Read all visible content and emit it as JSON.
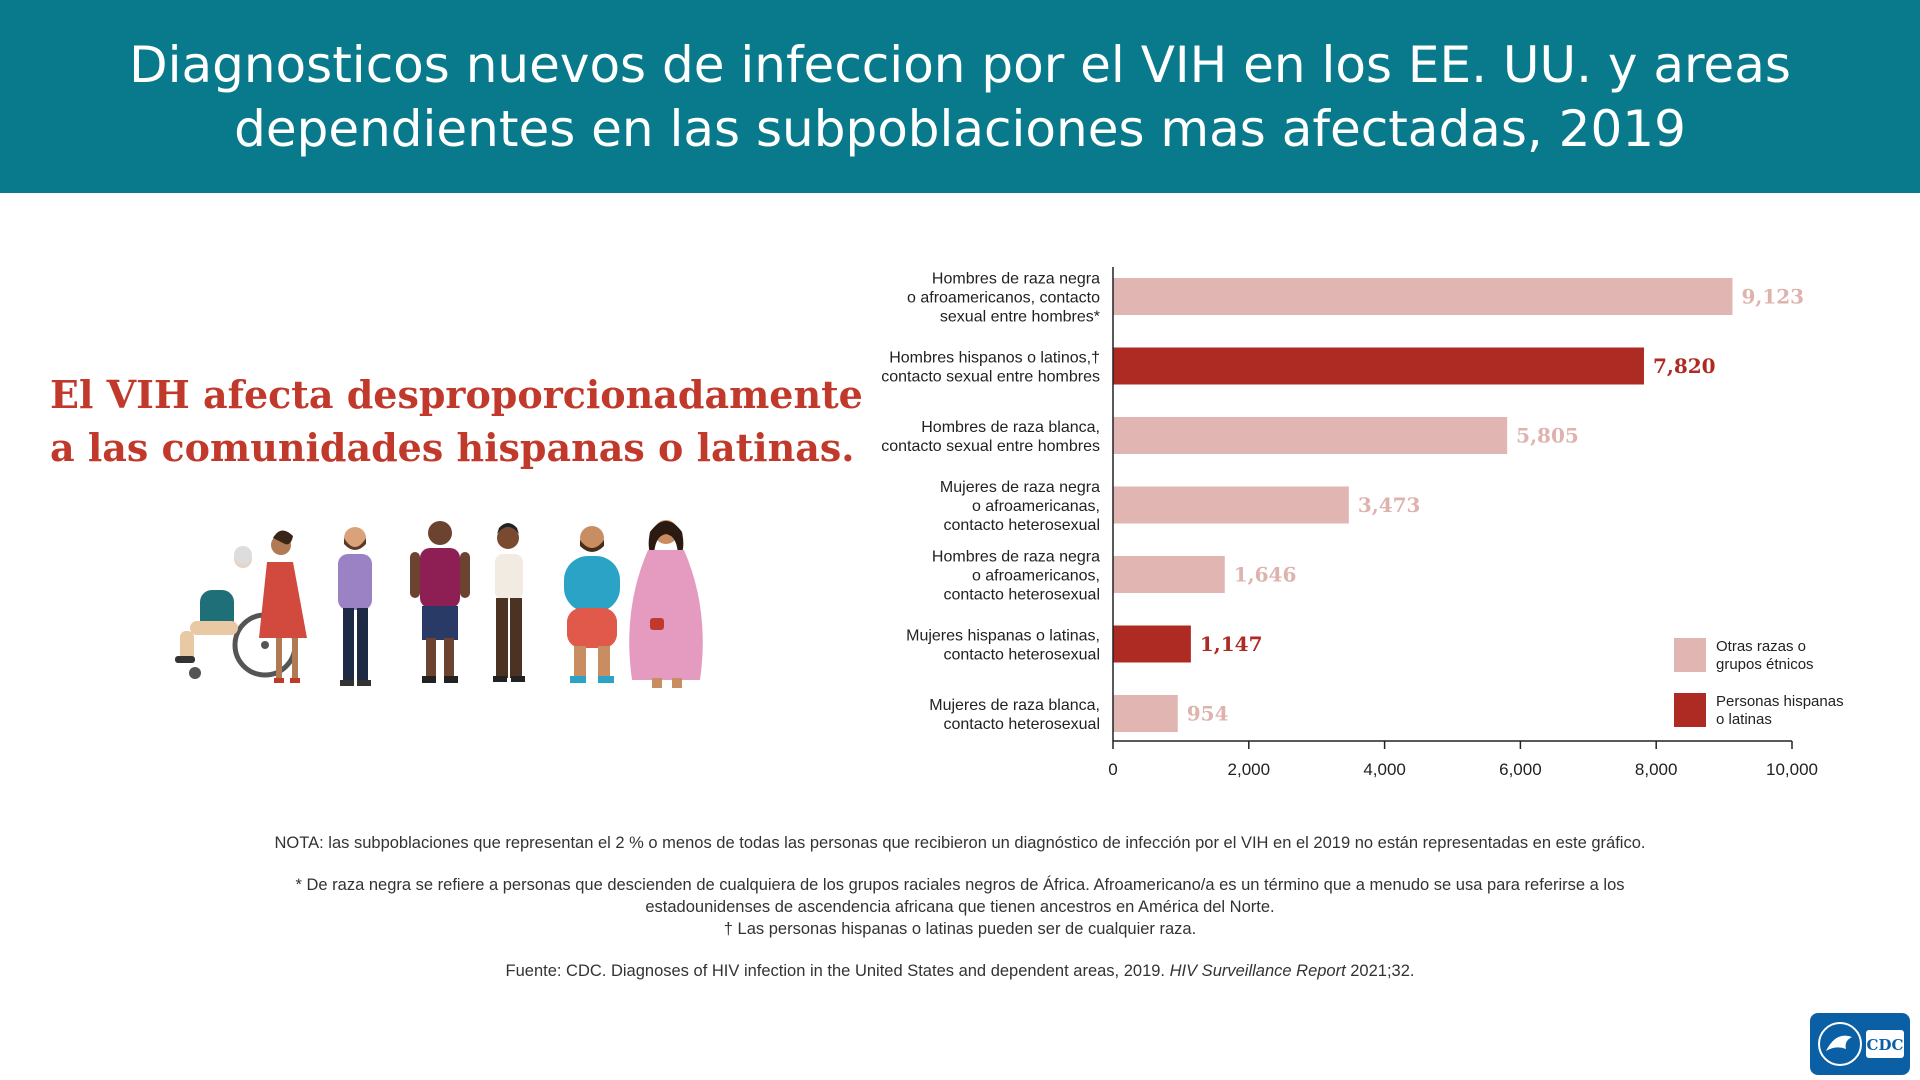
{
  "header": {
    "title_line1": "Diagnosticos nuevos de infeccion por el VIH en los EE. UU. y areas",
    "title_line2": "dependientes en las subpoblaciones mas afectadas, 2019"
  },
  "tagline": {
    "line1": "El VIH afecta desproporcionadamente",
    "line2": "a las comunidades hispanas o latinas."
  },
  "colors": {
    "header_bg": "#087a8b",
    "tagline": "#c0392b",
    "other_groups": "#e1b5b1",
    "hispanic": "#ad2b22",
    "other_label": "#deb2ad"
  },
  "chart_data": {
    "type": "bar",
    "orientation": "horizontal",
    "categories": [
      [
        "Hombres de raza negra",
        "o afroamericanos, contacto",
        "sexual entre hombres*"
      ],
      [
        "Hombres hispanos o latinos,†",
        "contacto sexual entre hombres"
      ],
      [
        "Hombres de raza blanca,",
        "contacto sexual entre hombres"
      ],
      [
        "Mujeres de raza negra",
        "o afroamericanas,",
        "contacto heterosexual"
      ],
      [
        "Hombres de raza negra",
        "o afroamericanos,",
        "contacto heterosexual"
      ],
      [
        "Mujeres hispanas o latinas,",
        "contacto heterosexual"
      ],
      [
        "Mujeres de raza blanca,",
        "contacto heterosexual"
      ]
    ],
    "values": [
      9123,
      7820,
      5805,
      3473,
      1646,
      1147,
      954
    ],
    "value_labels": [
      "9,123",
      "7,820",
      "5,805",
      "3,473",
      "1,646",
      "1,147",
      "954"
    ],
    "groups": [
      "other",
      "hispanic",
      "other",
      "other",
      "other",
      "hispanic",
      "other"
    ],
    "xlim": [
      0,
      10000
    ],
    "xticks": [
      0,
      2000,
      4000,
      6000,
      8000,
      10000
    ],
    "xtick_labels": [
      "0",
      "2,000",
      "4,000",
      "6,000",
      "8,000",
      "10,000"
    ],
    "legend": [
      {
        "group": "other",
        "lines": [
          "Otras razas o",
          "grupos étnicos"
        ]
      },
      {
        "group": "hispanic",
        "lines": [
          "Personas hispanas",
          "o latinas"
        ]
      }
    ],
    "legend_position": "bottom-right",
    "grid": false
  },
  "notes": {
    "nota": "NOTA: las subpoblaciones que representan el 2 % o menos de todas las personas que recibieron un diagnóstico de infección por el VIH en el 2019 no están representadas en este gráfico.",
    "footnote1_line1": "* De raza negra se refiere a personas que descienden de cualquiera de los grupos raciales negros de África. Afroamericano/a es un término que a menudo se usa para referirse a los",
    "footnote1_line2": "estadounidenses de ascendencia africana que tienen ancestros en América del Norte.",
    "footnote2": "† Las personas hispanas o latinas pueden ser de cualquier raza.",
    "source_prefix": "Fuente: CDC. Diagnoses of HIV infection in the United States and dependent areas, 2019. ",
    "source_italic": "HIV Surveillance Report",
    "source_suffix": " 2021;32."
  },
  "logo": {
    "text": "CDC"
  },
  "illustration": {
    "icon": "diverse-people-illustration"
  }
}
